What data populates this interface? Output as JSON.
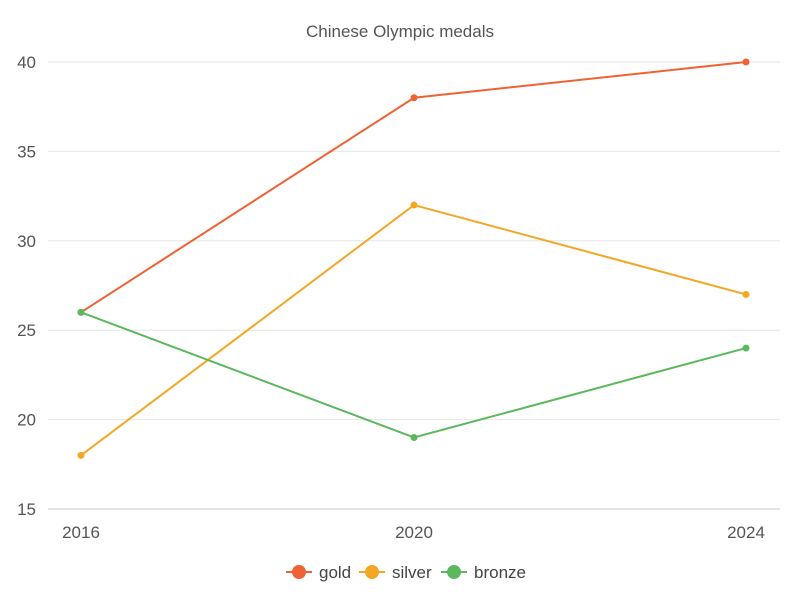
{
  "chart_data": {
    "type": "line",
    "title": "Chinese Olympic medals",
    "xlabel": "",
    "ylabel": "",
    "categories": [
      "2016",
      "2020",
      "2024"
    ],
    "ylim": [
      15,
      40
    ],
    "yticks": [
      15,
      20,
      25,
      30,
      35,
      40
    ],
    "grid": true,
    "legend_position": "bottom",
    "series": [
      {
        "name": "gold",
        "color": "#ee6233",
        "values": [
          26,
          38,
          40
        ]
      },
      {
        "name": "silver",
        "color": "#f5a623",
        "values": [
          18,
          32,
          27
        ]
      },
      {
        "name": "bronze",
        "color": "#5cb85c",
        "values": [
          26,
          19,
          24
        ]
      }
    ]
  }
}
